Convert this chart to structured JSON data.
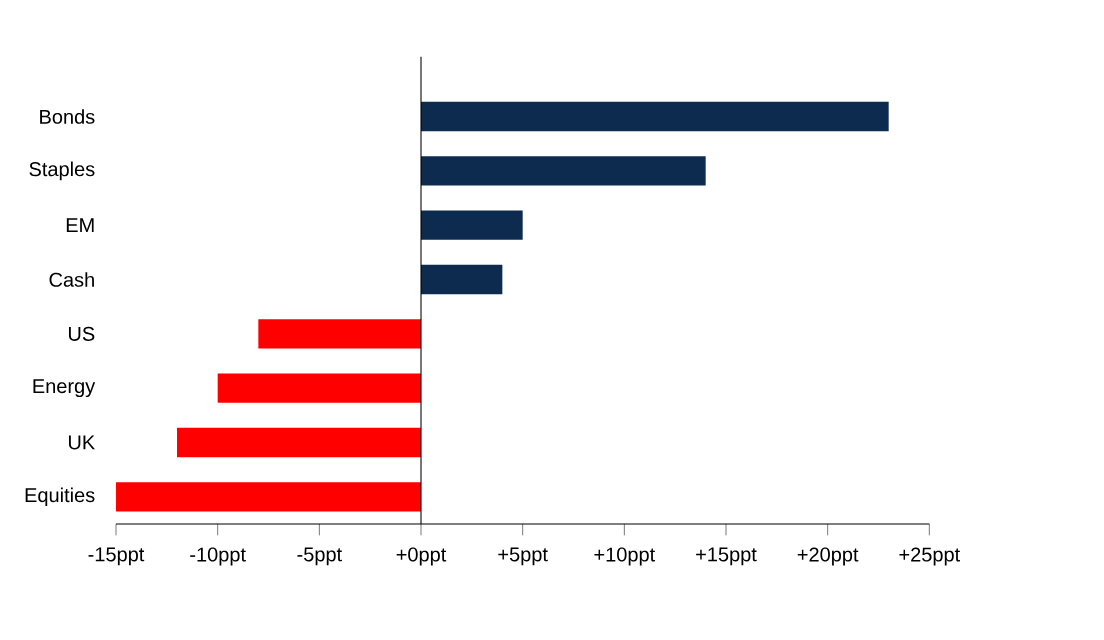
{
  "chart_data": {
    "type": "bar",
    "orientation": "horizontal",
    "categories": [
      "Bonds",
      "Staples",
      "EM",
      "Cash",
      "US",
      "Energy",
      "UK",
      "Equities"
    ],
    "values": [
      23,
      14,
      5,
      4,
      -8,
      -10,
      -12,
      -15
    ],
    "colors": [
      "#0d2a4f",
      "#0d2a4f",
      "#0d2a4f",
      "#0d2a4f",
      "#ff0000",
      "#ff0000",
      "#ff0000",
      "#ff0000"
    ],
    "xlim": [
      -15,
      25
    ],
    "xticks": [
      {
        "value": -15,
        "label": "-15ppt"
      },
      {
        "value": -10,
        "label": "-10ppt"
      },
      {
        "value": -5,
        "label": "-5ppt"
      },
      {
        "value": 0,
        "label": "+0ppt"
      },
      {
        "value": 5,
        "label": "+5ppt"
      },
      {
        "value": 10,
        "label": "+10ppt"
      },
      {
        "value": 15,
        "label": "+15ppt"
      },
      {
        "value": 20,
        "label": "+20ppt"
      },
      {
        "value": 25,
        "label": "+25ppt"
      }
    ],
    "line_style": "solid"
  }
}
